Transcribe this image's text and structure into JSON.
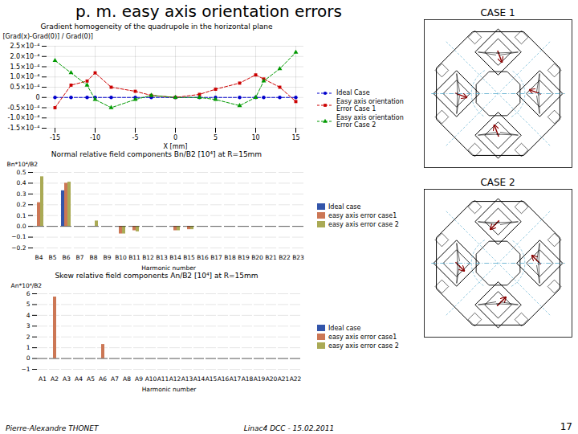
{
  "title": "p. m. easy axis orientation errors",
  "annotations": [
    "Pierre-Alexandre THONET",
    "Linac4 DCC - 15.02.2011",
    "17"
  ],
  "chart_data": [
    {
      "type": "line",
      "title": "Gradient homogeneity of the quadrupole in the horizontal plane",
      "xlabel": "X [mm]",
      "ylabel": "[Grad(x)-Grad(0)] / Grad(0)]",
      "x": [
        -15,
        -13,
        -11,
        -10,
        -8,
        -5,
        -3,
        0,
        3,
        5,
        8,
        10,
        11,
        13,
        15
      ],
      "series": [
        {
          "name": "Ideal Case",
          "color": "#0000cc",
          "marker": "circle",
          "line_style": "dashed",
          "values": [
            0.0,
            0.0,
            0.0,
            0.0,
            0.0,
            0.0,
            0.0,
            0.0,
            0.0,
            0.0,
            0.0,
            0.0,
            0.0,
            0.0,
            0.0
          ]
        },
        {
          "name": "Easy axis orientation Error Case 1",
          "color": "#cc0000",
          "marker": "square",
          "line_style": "dashed",
          "values": [
            -5e-05,
            6e-05,
            8e-05,
            0.00012,
            5e-05,
            3e-05,
            1e-05,
            0.0,
            1.5e-05,
            4e-05,
            7e-05,
            0.00011,
            9e-05,
            5e-05,
            -2e-05
          ]
        },
        {
          "name": "Easy axis orientation Error Case 2",
          "color": "#009900",
          "marker": "triangle",
          "line_style": "dashed",
          "values": [
            0.00018,
            0.00012,
            6e-05,
            -1e-05,
            -5e-05,
            -1e-05,
            1e-05,
            0.0,
            0.0,
            -1e-05,
            -4e-05,
            0.0,
            8e-05,
            0.00014,
            0.00022
          ]
        }
      ],
      "xlim": [
        -16,
        16
      ],
      "xticks": [
        -15,
        -10,
        -5,
        0,
        5,
        10,
        15
      ],
      "ylim": [
        -0.00015,
        0.00025
      ],
      "yticks": [
        {
          "value": -0.00015,
          "label": "-1.5×10⁻⁴"
        },
        {
          "value": -0.0001,
          "label": "-1.0×10⁻⁴"
        },
        {
          "value": -5e-05,
          "label": "-0.5×10⁻⁴"
        },
        0,
        {
          "value": 5e-05,
          "label": "0.5×10⁻⁴"
        },
        {
          "value": 0.0001,
          "label": "1.0×10⁻⁴"
        },
        {
          "value": 0.00015,
          "label": "1.5×10⁻⁴"
        },
        {
          "value": 0.0002,
          "label": "2.0×10⁻⁴"
        },
        {
          "value": 0.00025,
          "label": "2.5×10⁻⁴"
        }
      ],
      "grid": true,
      "legend": "lower left"
    },
    {
      "type": "bar",
      "title": "Normal relative field components Bn/B2 [10⁴] at R=15mm",
      "xlabel": "Harmonic number",
      "ylabel": "Bn*10⁴/B2",
      "categories": [
        "B4",
        "B5",
        "B6",
        "B7",
        "B8",
        "B9",
        "B10",
        "B11",
        "B12",
        "B13",
        "B14",
        "B15",
        "B16",
        "B17",
        "B18",
        "B19",
        "B20",
        "B21",
        "B22",
        "B23"
      ],
      "series": [
        {
          "name": "Ideal case",
          "color": "#3355aa",
          "values": [
            0,
            0,
            0.33,
            0,
            0,
            0,
            0,
            0,
            0,
            0,
            0,
            0,
            0,
            0,
            0,
            0,
            0,
            0,
            0,
            0
          ]
        },
        {
          "name": "easy axis error case1",
          "color": "#cc7755",
          "values": [
            0.22,
            0,
            0.4,
            0,
            0,
            0,
            -0.07,
            -0.04,
            0,
            0,
            -0.04,
            -0.03,
            0,
            0,
            0,
            0,
            0,
            0,
            0,
            0
          ]
        },
        {
          "name": "easy axis error case 2",
          "color": "#aaaa55",
          "values": [
            0.46,
            0,
            0.41,
            0,
            0.05,
            0,
            -0.07,
            -0.05,
            0,
            0,
            -0.04,
            -0.03,
            0,
            0,
            0,
            0,
            0,
            0,
            0,
            0
          ]
        }
      ],
      "ylim": [
        -0.2,
        0.5
      ],
      "yticks": [
        {
          "value": -0.2,
          "label": "−0.2"
        },
        {
          "value": -0.1,
          "label": "−0.1"
        },
        {
          "value": 0.0,
          "label": "0.0"
        },
        0.1,
        0.2,
        0.3,
        0.4,
        0.5
      ],
      "grid": "y",
      "legend": "center right"
    },
    {
      "type": "bar",
      "title": "Skew relative field components An/B2 [10⁴] at R=15mm",
      "xlabel": "Harmonic number",
      "ylabel": "An*10⁴/B2",
      "categories": [
        "A1",
        "A2",
        "A3",
        "A4",
        "A5",
        "A6",
        "A7",
        "A8",
        "A9",
        "A10",
        "A11",
        "A12",
        "A13",
        "A14",
        "A15",
        "A16",
        "A17",
        "A18",
        "A19",
        "A20",
        "A21",
        "A22"
      ],
      "series": [
        {
          "name": "Ideal case",
          "color": "#3355aa",
          "values": [
            0,
            0,
            0,
            0,
            0,
            0,
            0,
            0,
            0,
            0,
            0,
            0,
            0,
            0,
            0,
            0,
            0,
            0,
            0,
            0,
            0,
            0
          ]
        },
        {
          "name": "easy axis error case1",
          "color": "#cc7755",
          "values": [
            0,
            5.7,
            0,
            0,
            0,
            1.3,
            0,
            0,
            0,
            0,
            0,
            0,
            0,
            0,
            0,
            0,
            0,
            0,
            0,
            0,
            0,
            0
          ]
        },
        {
          "name": "easy axis error case 2",
          "color": "#aaaa55",
          "values": [
            0,
            0,
            0,
            0,
            0,
            0,
            0,
            0,
            0,
            0,
            0,
            0,
            0,
            0,
            0,
            0,
            0,
            0,
            0,
            0,
            0,
            0
          ]
        }
      ],
      "ylim": [
        -1,
        6
      ],
      "yticks": [
        {
          "value": -1,
          "label": "−1"
        },
        0,
        1,
        2,
        3,
        4,
        5,
        6
      ],
      "grid": "y",
      "legend": "center right"
    },
    {
      "type": "diagram",
      "title": "CASE 1"
    },
    {
      "type": "diagram",
      "title": "CASE 2"
    }
  ]
}
